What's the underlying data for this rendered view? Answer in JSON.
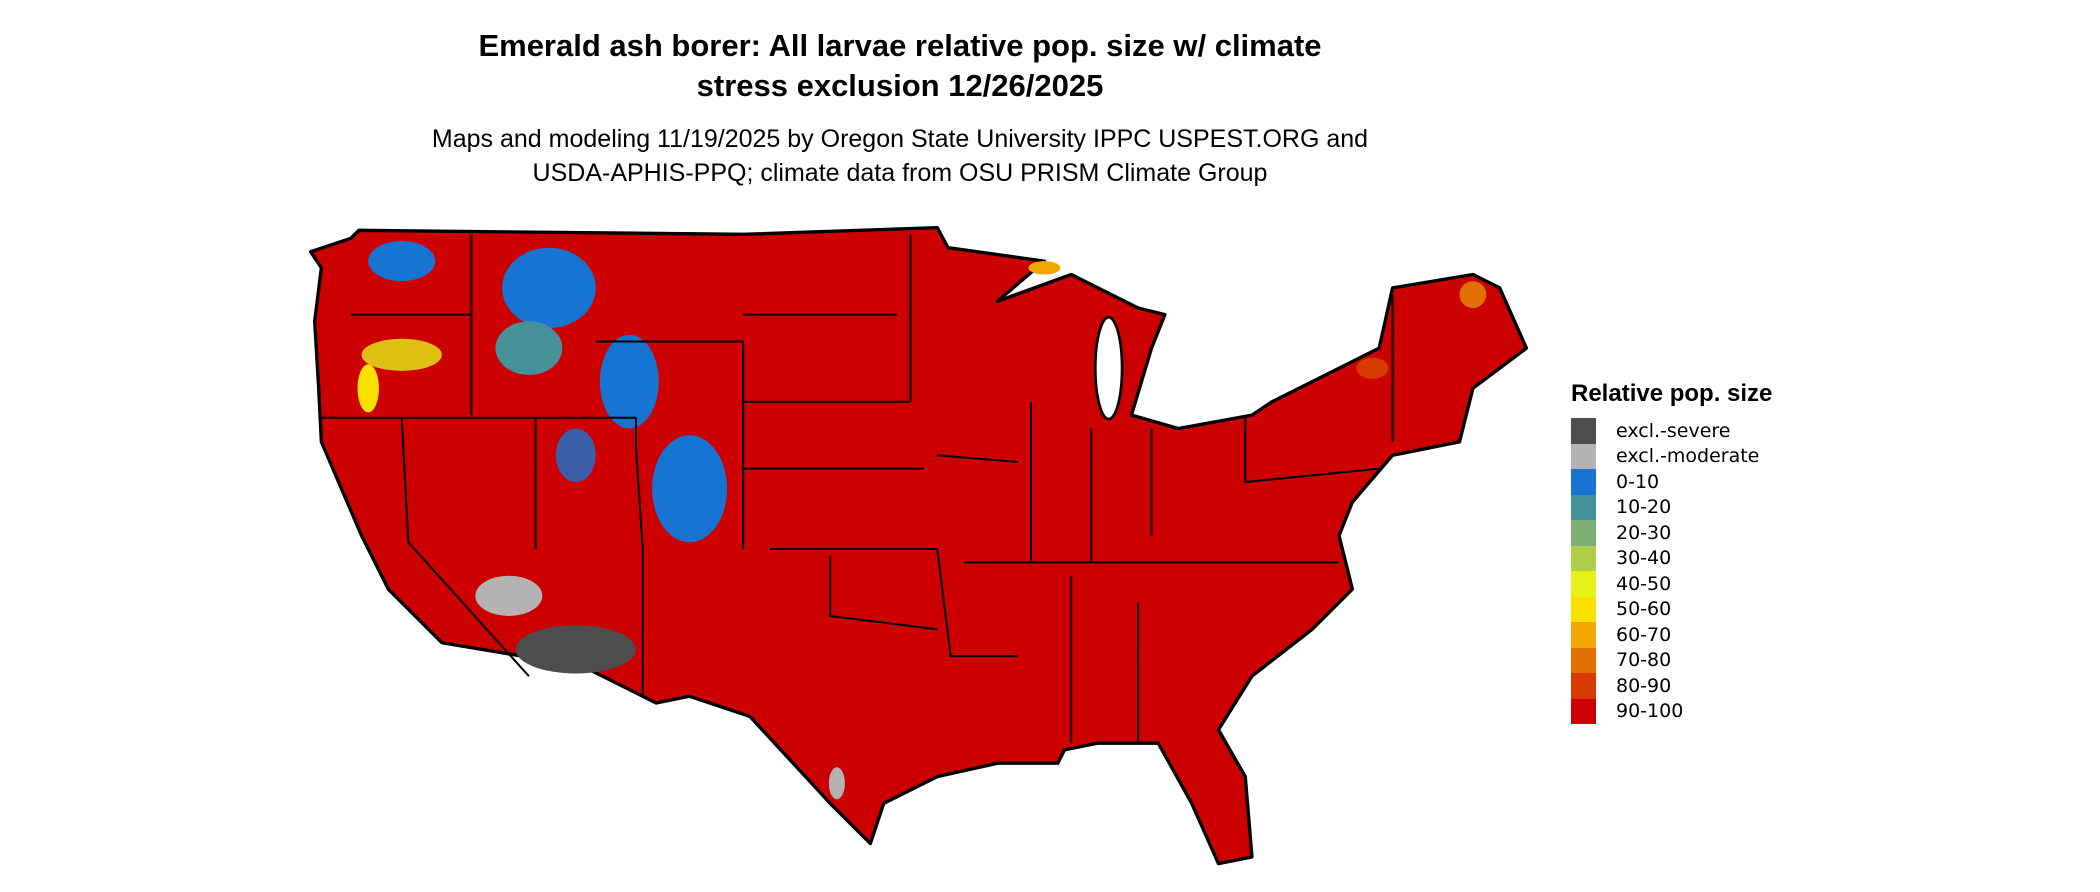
{
  "title": {
    "line1": "Emerald ash borer: All larvae relative pop. size w/ climate",
    "line2": "stress exclusion 12/26/2025"
  },
  "subtitle": {
    "line1": "Maps and modeling 11/19/2025 by Oregon State University IPPC USPEST.ORG and",
    "line2": "USDA-APHIS-PPQ; climate data from OSU PRISM Climate Group"
  },
  "legend": {
    "title": "Relative pop. size",
    "items": [
      {
        "label": "excl.-severe",
        "color": "#4d4d4d"
      },
      {
        "label": "excl.-moderate",
        "color": "#b3b3b3"
      },
      {
        "label": "0-10",
        "color": "#1874d2"
      },
      {
        "label": "10-20",
        "color": "#47919b"
      },
      {
        "label": "20-30",
        "color": "#7cae72"
      },
      {
        "label": "30-40",
        "color": "#b3cf47"
      },
      {
        "label": "40-50",
        "color": "#e6f01a"
      },
      {
        "label": "50-60",
        "color": "#f8e000"
      },
      {
        "label": "60-70",
        "color": "#f0a800"
      },
      {
        "label": "70-80",
        "color": "#e27000"
      },
      {
        "label": "80-90",
        "color": "#d63a00"
      },
      {
        "label": "90-100",
        "color": "#cc0000"
      }
    ]
  }
}
